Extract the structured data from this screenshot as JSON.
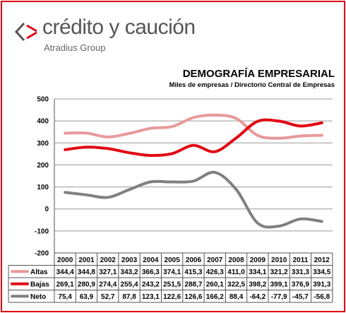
{
  "brand": {
    "name": "crédito y caución",
    "group": "Atradius Group",
    "colors": {
      "red": "#e20613",
      "gray": "#555555"
    }
  },
  "chart_data": {
    "type": "line",
    "title": "DEMOGRAFÍA EMPRESARIAL",
    "subtitle": "Miles de empresas / Directorio Central de Empresas",
    "x": [
      "2000",
      "2001",
      "2002",
      "2003",
      "2004",
      "2005",
      "2006",
      "2007",
      "2008",
      "2009",
      "2010",
      "2011",
      "2012"
    ],
    "ylim": [
      -200,
      500
    ],
    "yticks": [
      -200,
      -100,
      0,
      100,
      200,
      300,
      400,
      500
    ],
    "grid": true,
    "legend": "table-bottom",
    "series": [
      {
        "name": "Altas",
        "color": "#e8999a",
        "values": [
          344.4,
          344.8,
          327.1,
          343.2,
          366.3,
          374.1,
          415.3,
          426.3,
          411.0,
          334.1,
          321.2,
          331.3,
          334.5
        ],
        "labels": [
          "344,4",
          "344,8",
          "327,1",
          "343,2",
          "366,3",
          "374,1",
          "415,3",
          "426,3",
          "411,0",
          "334,1",
          "321,2",
          "331,3",
          "334,5"
        ]
      },
      {
        "name": "Bajas",
        "color": "#e20613",
        "values": [
          269.1,
          280.9,
          274.4,
          255.4,
          243.2,
          251.5,
          288.7,
          260.1,
          322.5,
          398.2,
          399.1,
          376.9,
          391.3
        ],
        "labels": [
          "269,1",
          "280,9",
          "274,4",
          "255,4",
          "243,2",
          "251,5",
          "288,7",
          "260,1",
          "322,5",
          "398,2",
          "399,1",
          "376,9",
          "391,3"
        ]
      },
      {
        "name": "Neto",
        "color": "#808080",
        "values": [
          75.4,
          63.9,
          52.7,
          87.8,
          123.1,
          122.6,
          126.6,
          166.2,
          88.4,
          -64.2,
          -77.9,
          -45.7,
          -56.8
        ],
        "labels": [
          "75,4",
          "63,9",
          "52,7",
          "87,8",
          "123,1",
          "122,6",
          "126,6",
          "166,2",
          "88,4",
          "-64,2",
          "-77,9",
          "-45,7",
          "-56,8"
        ]
      }
    ]
  }
}
